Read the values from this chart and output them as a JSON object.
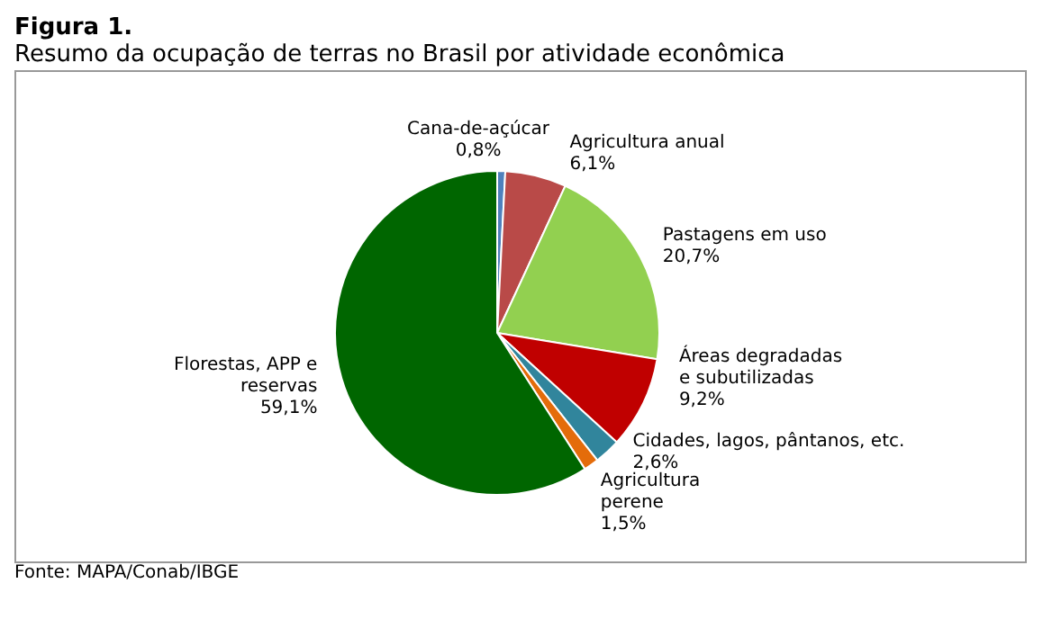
{
  "chart_data": {
    "type": "pie",
    "title": "Figura 1.",
    "subtitle": "Resumo da ocupação de terras no Brasil por atividade econômica",
    "categories": [
      "Cana-de-açúcar",
      "Agricultura anual",
      "Pastagens em uso",
      "Áreas degradadas e subutilizadas",
      "Cidades, lagos, pântanos, etc.",
      "Agricultura perene",
      "Florestas, APP e reservas"
    ],
    "values": [
      0.8,
      6.1,
      20.7,
      9.2,
      2.6,
      1.5,
      59.1
    ],
    "value_labels": [
      "0,8%",
      "6,1%",
      "20,7%",
      "9,2%",
      "2,6%",
      "1,5%",
      "59,1%"
    ],
    "colors": [
      "#4f81bd",
      "#b94a48",
      "#92d050",
      "#c00000",
      "#31859c",
      "#e46c0a",
      "#006600"
    ],
    "annotations": [
      "Fonte: MAPA/Conab/IBGE"
    ],
    "legend": false
  }
}
